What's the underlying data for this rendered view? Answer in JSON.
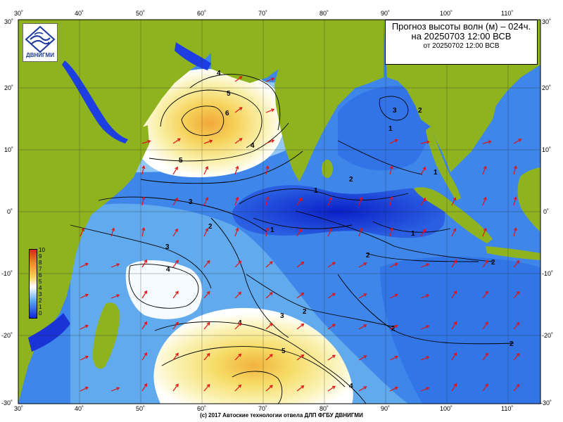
{
  "title": {
    "line1": "Прогноз высоты волн (м) – 024ч.",
    "line2": "на 20250703 12:00 ВСВ",
    "line3": "от 20250702 12:00 ВСВ"
  },
  "logo": {
    "text": "ДВНИГМИ",
    "icon": "wave-emblem-icon"
  },
  "credit": "(c) 2017 Автоские технологии отвела ДЛП ФГБУ ДВНИГМИ",
  "map": {
    "lon_ticks": [
      "30˚",
      "40˚",
      "50˚",
      "60˚",
      "70˚",
      "80˚",
      "90˚",
      "100˚",
      "110˚"
    ],
    "lat_ticks": [
      "30˚",
      "20˚",
      "10˚",
      "0˚",
      "-10˚",
      "-20˚",
      "-30˚"
    ],
    "lon_range": [
      30,
      115
    ],
    "lat_range": [
      -30,
      30
    ],
    "land_color": "#8fb31f",
    "ocean_low_color": "#0e27d8",
    "ocean_high_color": "#f5e66a"
  },
  "contour_labels": [
    "4",
    "5",
    "6",
    "5",
    "4",
    "3",
    "2",
    "3",
    "1",
    "1",
    "1",
    "2",
    "3",
    "4",
    "4",
    "5",
    "4",
    "3",
    "2",
    "2",
    "2",
    "2",
    "1",
    "1",
    "2",
    "2"
  ],
  "legend": {
    "labels": [
      "10",
      "9",
      "8",
      "7",
      "6",
      "5",
      "4",
      "3",
      "2",
      "1",
      "0"
    ],
    "colors": [
      "#d62a14",
      "#e85a18",
      "#f08a2a",
      "#f6c043",
      "#f5e66a",
      "#fbfadf",
      "#ffffff",
      "#b8dcf2",
      "#5aa9ec",
      "#2468e6",
      "#0e27d8"
    ]
  }
}
